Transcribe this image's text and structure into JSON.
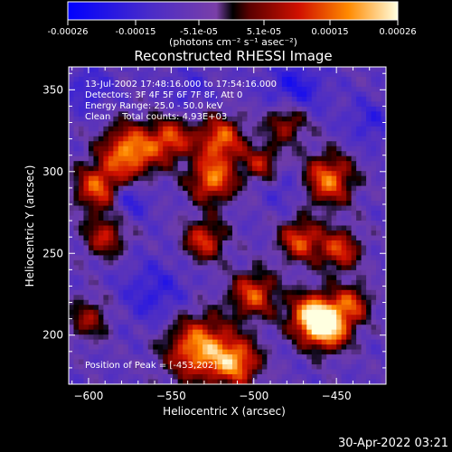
{
  "chart_data": {
    "type": "heatmap",
    "title": "Reconstructed RHESSI Image",
    "xlabel": "Heliocentric X (arcsec)",
    "ylabel": "Heliocentric Y (arcsec)",
    "xlim": [
      -612,
      -420
    ],
    "ylim": [
      170,
      364
    ],
    "x_ticks": [
      -600,
      -550,
      -500,
      -450
    ],
    "y_ticks": [
      200,
      250,
      300,
      350
    ],
    "colorbar": {
      "ticks": [
        "-0.00026",
        "-0.00015",
        "-5.1e-05",
        "5.1e-05",
        "0.00015",
        "0.00026"
      ],
      "unit_label": "(photons cm⁻² s⁻¹ asec⁻²)",
      "range": [
        -0.00026,
        0.00026
      ]
    },
    "annotations": [
      "13-Jul-2002 17:48:16.000 to 17:54:16.000",
      "Detectors: 3F 4F 5F 6F 7F 8F, Att 0",
      "Energy Range: 25.0 - 50.0 keV",
      "Clean    Total counts: 4.93E+03"
    ],
    "peak_label": "Position of Peak = [-453,202]",
    "peak": {
      "x": -453,
      "y": 202
    },
    "timestamp": "30-Apr-2022 03:21",
    "hotspots": [
      {
        "x": -455,
        "y": 205,
        "amp": 1.0,
        "s": 10
      },
      {
        "x": -465,
        "y": 212,
        "amp": 0.9,
        "s": 10
      },
      {
        "x": -533,
        "y": 192,
        "amp": 0.95,
        "s": 14
      },
      {
        "x": -510,
        "y": 183,
        "amp": 0.8,
        "s": 10
      },
      {
        "x": -575,
        "y": 312,
        "amp": 0.95,
        "s": 12
      },
      {
        "x": -595,
        "y": 290,
        "amp": 0.75,
        "s": 10
      },
      {
        "x": -550,
        "y": 320,
        "amp": 0.7,
        "s": 9
      },
      {
        "x": -520,
        "y": 320,
        "amp": 0.8,
        "s": 10
      },
      {
        "x": -525,
        "y": 295,
        "amp": 0.85,
        "s": 10
      },
      {
        "x": -530,
        "y": 258,
        "amp": 0.7,
        "s": 9
      },
      {
        "x": -455,
        "y": 295,
        "amp": 0.85,
        "s": 11
      },
      {
        "x": -472,
        "y": 258,
        "amp": 0.75,
        "s": 9
      },
      {
        "x": -448,
        "y": 252,
        "amp": 0.7,
        "s": 9
      },
      {
        "x": -500,
        "y": 225,
        "amp": 0.75,
        "s": 10
      },
      {
        "x": -590,
        "y": 260,
        "amp": 0.6,
        "s": 9
      },
      {
        "x": -495,
        "y": 305,
        "amp": 0.55,
        "s": 8
      },
      {
        "x": -600,
        "y": 210,
        "amp": 0.5,
        "s": 9
      },
      {
        "x": -480,
        "y": 330,
        "amp": 0.6,
        "s": 9
      },
      {
        "x": -440,
        "y": 220,
        "amp": 0.6,
        "s": 8
      }
    ],
    "coldspots": [
      {
        "x": -575,
        "y": 283,
        "amp": 0.8,
        "s": 8
      },
      {
        "x": -560,
        "y": 225,
        "amp": 0.7,
        "s": 14
      },
      {
        "x": -475,
        "y": 350,
        "amp": 0.9,
        "s": 12
      },
      {
        "x": -600,
        "y": 350,
        "amp": 0.6,
        "s": 10
      },
      {
        "x": -540,
        "y": 350,
        "amp": 0.5,
        "s": 9
      },
      {
        "x": -430,
        "y": 330,
        "amp": 0.6,
        "s": 10
      },
      {
        "x": -480,
        "y": 290,
        "amp": 0.5,
        "s": 9
      }
    ]
  }
}
